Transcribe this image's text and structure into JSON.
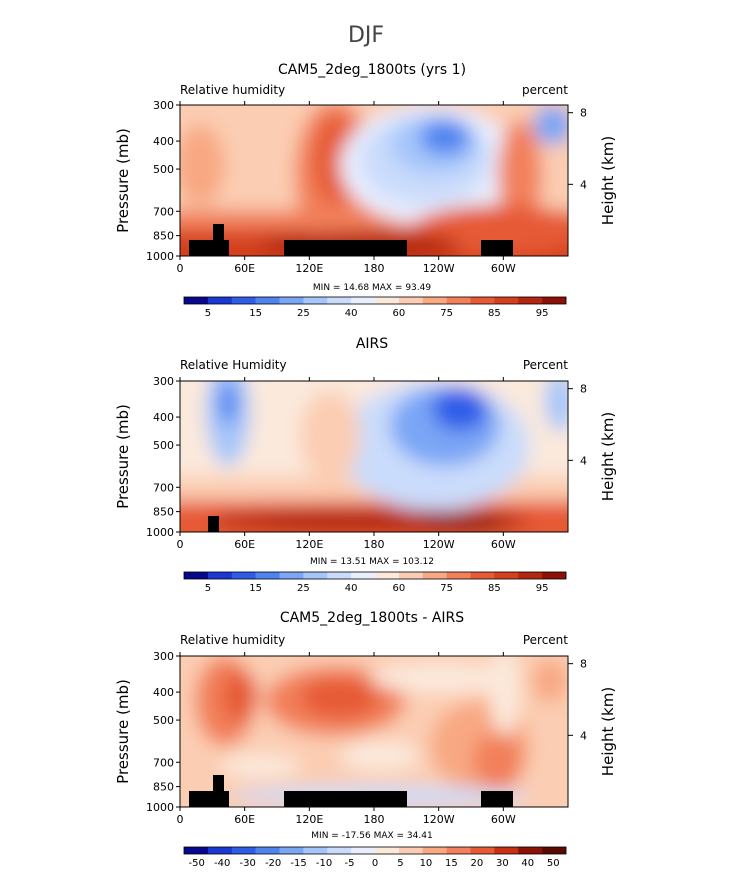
{
  "figure_title": "DJF",
  "chart_data": [
    {
      "type": "heatmap",
      "title": "CAM5_2deg_1800ts (yrs 1)",
      "left_label": "Relative humidity",
      "right_label": "percent",
      "ylabel": "Pressure (mb)",
      "ylabel_right": "Height (km)",
      "x_ticks": [
        "0",
        "60E",
        "120E",
        "180",
        "120W",
        "60W"
      ],
      "y_ticks": [
        "300",
        "400",
        "500",
        "700",
        "850",
        "1000"
      ],
      "right_ticks": [
        "8",
        "4"
      ],
      "stats": "MIN =   14.68   MAX =   93.49",
      "colorbar_labels": [
        "5",
        "15",
        "25",
        "40",
        "60",
        "75",
        "85",
        "95"
      ],
      "ylim": [
        1000,
        300
      ],
      "grid": false
    },
    {
      "type": "heatmap",
      "title": "AIRS",
      "left_label": "Relative Humidity",
      "right_label": "Percent",
      "ylabel": "Pressure (mb)",
      "ylabel_right": "Height (km)",
      "x_ticks": [
        "0",
        "60E",
        "120E",
        "180",
        "120W",
        "60W"
      ],
      "y_ticks": [
        "300",
        "400",
        "500",
        "700",
        "850",
        "1000"
      ],
      "right_ticks": [
        "8",
        "4"
      ],
      "stats": "MIN =   13.51   MAX =  103.12",
      "colorbar_labels": [
        "5",
        "15",
        "25",
        "40",
        "60",
        "75",
        "85",
        "95"
      ],
      "ylim": [
        1000,
        300
      ],
      "grid": false
    },
    {
      "type": "heatmap",
      "title": "CAM5_2deg_1800ts - AIRS",
      "left_label": "Relative humidity",
      "right_label": "Percent",
      "ylabel": "Pressure (mb)",
      "ylabel_right": "Height (km)",
      "x_ticks": [
        "0",
        "60E",
        "120E",
        "180",
        "120W",
        "60W"
      ],
      "y_ticks": [
        "300",
        "400",
        "500",
        "700",
        "850",
        "1000"
      ],
      "right_ticks": [
        "8",
        "4"
      ],
      "stats": "MIN =  -17.56   MAX =   34.41",
      "colorbar_labels": [
        "-50",
        "-40",
        "-30",
        "-20",
        "-15",
        "-10",
        "-5",
        "0",
        "5",
        "10",
        "15",
        "20",
        "30",
        "40",
        "50"
      ],
      "ylim": [
        1000,
        300
      ],
      "grid": false
    }
  ],
  "colors": {
    "palette": [
      "#08088e",
      "#1c38d4",
      "#2f5de8",
      "#4f84f0",
      "#7aa6f5",
      "#a6c6fa",
      "#cadcfb",
      "#e9efff",
      "#fbe9dc",
      "#fbcdb2",
      "#f8a882",
      "#f2805a",
      "#e65a35",
      "#d43f1e",
      "#b3260f",
      "#8c1208"
    ],
    "palette_diff": [
      "#08088e",
      "#1c38d4",
      "#2f5de8",
      "#4f84f0",
      "#7aa6f5",
      "#a6c6fa",
      "#cadcfb",
      "#e9efff",
      "#fbe9dc",
      "#fbcdb2",
      "#f8a882",
      "#f2805a",
      "#e65a35",
      "#c82f14",
      "#8c1208",
      "#5a0a05"
    ],
    "topography": "#000000"
  }
}
